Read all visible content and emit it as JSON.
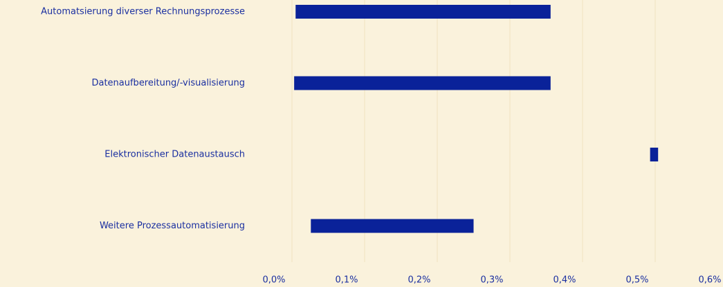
{
  "chart_data": {
    "type": "range",
    "orientation": "horizontal",
    "categories": [
      "Automatsierung diverser Rechnungsprozesse",
      "Datenaufbereitung/-visualisierung",
      "Elektronischer Datenaustausch",
      "Weitere Prozessautomatisierung"
    ],
    "low": [
      0.005,
      0.003,
      0.493,
      0.026
    ],
    "high": [
      0.356,
      0.356,
      0.504,
      0.25
    ],
    "color": "#0a2299",
    "xlim": [
      0,
      0.6
    ],
    "xticks": [
      {
        "value": 0,
        "label": "0,0%"
      },
      {
        "value": 0.1,
        "label": "0,1%"
      },
      {
        "value": 0.2,
        "label": "0,2%"
      },
      {
        "value": 0.3,
        "label": "0,3%"
      },
      {
        "value": 0.4,
        "label": "0,4%"
      },
      {
        "value": 0.5,
        "label": "0,5%"
      },
      {
        "value": 0.6,
        "label": "0,6%"
      }
    ],
    "grid": true
  }
}
